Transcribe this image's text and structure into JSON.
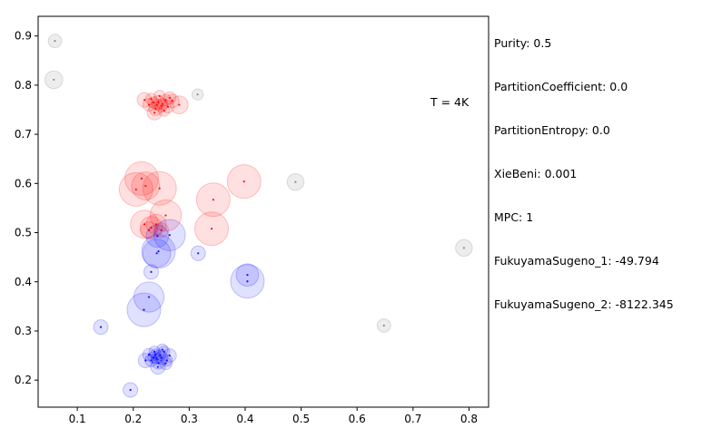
{
  "chart_data": {
    "type": "scatter",
    "title": "",
    "xlabel": "",
    "ylabel": "",
    "xlim": [
      0.03,
      0.835
    ],
    "ylim": [
      0.145,
      0.94
    ],
    "x_ticks": [
      0.1,
      0.2,
      0.3,
      0.4,
      0.5,
      0.6,
      0.7,
      0.8
    ],
    "y_ticks": [
      0.2,
      0.3,
      0.4,
      0.5,
      0.6,
      0.7,
      0.8,
      0.9
    ],
    "x_tick_labels": [
      "0.1",
      "0.2",
      "0.3",
      "0.4",
      "0.5",
      "0.6",
      "0.7",
      "0.8"
    ],
    "y_tick_labels": [
      "0.2",
      "0.3",
      "0.4",
      "0.5",
      "0.6",
      "0.7",
      "0.8",
      "0.9"
    ],
    "annotation": "T = 4K",
    "series_colors": {
      "red": "#ff0000",
      "blue": "#0000ff",
      "grey": "#808080"
    },
    "series": [
      {
        "name": "red",
        "points": [
          {
            "x": 0.245,
            "y": 0.765,
            "r": 0.012
          },
          {
            "x": 0.232,
            "y": 0.772,
            "r": 0.01
          },
          {
            "x": 0.25,
            "y": 0.758,
            "r": 0.011
          },
          {
            "x": 0.24,
            "y": 0.752,
            "r": 0.012
          },
          {
            "x": 0.258,
            "y": 0.77,
            "r": 0.01
          },
          {
            "x": 0.228,
            "y": 0.76,
            "r": 0.011
          },
          {
            "x": 0.247,
            "y": 0.778,
            "r": 0.01
          },
          {
            "x": 0.238,
            "y": 0.744,
            "r": 0.013
          },
          {
            "x": 0.262,
            "y": 0.756,
            "r": 0.011
          },
          {
            "x": 0.255,
            "y": 0.748,
            "r": 0.01
          },
          {
            "x": 0.22,
            "y": 0.77,
            "r": 0.013
          },
          {
            "x": 0.27,
            "y": 0.768,
            "r": 0.012
          },
          {
            "x": 0.242,
            "y": 0.76,
            "r": 0.01
          },
          {
            "x": 0.236,
            "y": 0.765,
            "r": 0.01
          },
          {
            "x": 0.252,
            "y": 0.762,
            "r": 0.01
          },
          {
            "x": 0.282,
            "y": 0.76,
            "r": 0.016
          },
          {
            "x": 0.265,
            "y": 0.774,
            "r": 0.011
          },
          {
            "x": 0.215,
            "y": 0.61,
            "r": 0.03
          },
          {
            "x": 0.205,
            "y": 0.588,
            "r": 0.03
          },
          {
            "x": 0.222,
            "y": 0.595,
            "r": 0.025
          },
          {
            "x": 0.247,
            "y": 0.59,
            "r": 0.03
          },
          {
            "x": 0.398,
            "y": 0.604,
            "r": 0.03
          },
          {
            "x": 0.343,
            "y": 0.567,
            "r": 0.03
          },
          {
            "x": 0.258,
            "y": 0.535,
            "r": 0.028
          },
          {
            "x": 0.34,
            "y": 0.508,
            "r": 0.03
          },
          {
            "x": 0.22,
            "y": 0.517,
            "r": 0.025
          },
          {
            "x": 0.232,
            "y": 0.51,
            "r": 0.02
          },
          {
            "x": 0.241,
            "y": 0.517,
            "r": 0.018
          },
          {
            "x": 0.228,
            "y": 0.505,
            "r": 0.015
          },
          {
            "x": 0.25,
            "y": 0.505,
            "r": 0.013
          }
        ]
      },
      {
        "name": "blue",
        "points": [
          {
            "x": 0.243,
            "y": 0.493,
            "r": 0.02
          },
          {
            "x": 0.265,
            "y": 0.495,
            "r": 0.028
          },
          {
            "x": 0.245,
            "y": 0.462,
            "r": 0.03
          },
          {
            "x": 0.242,
            "y": 0.458,
            "r": 0.025
          },
          {
            "x": 0.316,
            "y": 0.458,
            "r": 0.013
          },
          {
            "x": 0.404,
            "y": 0.414,
            "r": 0.02
          },
          {
            "x": 0.404,
            "y": 0.401,
            "r": 0.03
          },
          {
            "x": 0.232,
            "y": 0.42,
            "r": 0.013
          },
          {
            "x": 0.228,
            "y": 0.369,
            "r": 0.027
          },
          {
            "x": 0.219,
            "y": 0.343,
            "r": 0.03
          },
          {
            "x": 0.142,
            "y": 0.308,
            "r": 0.013
          },
          {
            "x": 0.195,
            "y": 0.18,
            "r": 0.013
          },
          {
            "x": 0.24,
            "y": 0.252,
            "r": 0.01
          },
          {
            "x": 0.25,
            "y": 0.245,
            "r": 0.012
          },
          {
            "x": 0.232,
            "y": 0.24,
            "r": 0.011
          },
          {
            "x": 0.255,
            "y": 0.258,
            "r": 0.01
          },
          {
            "x": 0.245,
            "y": 0.235,
            "r": 0.011
          },
          {
            "x": 0.26,
            "y": 0.24,
            "r": 0.01
          },
          {
            "x": 0.238,
            "y": 0.258,
            "r": 0.01
          },
          {
            "x": 0.222,
            "y": 0.24,
            "r": 0.013
          },
          {
            "x": 0.265,
            "y": 0.25,
            "r": 0.012
          },
          {
            "x": 0.244,
            "y": 0.227,
            "r": 0.013
          },
          {
            "x": 0.252,
            "y": 0.262,
            "r": 0.01
          },
          {
            "x": 0.236,
            "y": 0.246,
            "r": 0.01
          },
          {
            "x": 0.248,
            "y": 0.25,
            "r": 0.01
          },
          {
            "x": 0.242,
            "y": 0.244,
            "r": 0.01
          },
          {
            "x": 0.228,
            "y": 0.252,
            "r": 0.011
          },
          {
            "x": 0.258,
            "y": 0.234,
            "r": 0.011
          }
        ]
      },
      {
        "name": "grey",
        "points": [
          {
            "x": 0.06,
            "y": 0.89,
            "r": 0.012
          },
          {
            "x": 0.058,
            "y": 0.811,
            "r": 0.016
          },
          {
            "x": 0.315,
            "y": 0.781,
            "r": 0.01
          },
          {
            "x": 0.49,
            "y": 0.603,
            "r": 0.015
          },
          {
            "x": 0.791,
            "y": 0.469,
            "r": 0.015
          },
          {
            "x": 0.648,
            "y": 0.311,
            "r": 0.012
          }
        ]
      }
    ]
  },
  "metrics": [
    "Purity: 0.5",
    "PartitionCoefficient: 0.0",
    "PartitionEntropy: 0.0",
    "XieBeni: 0.001",
    "MPC: 1",
    "FukuyamaSugeno_1: -49.794",
    "FukuyamaSugeno_2: -8122.345"
  ]
}
